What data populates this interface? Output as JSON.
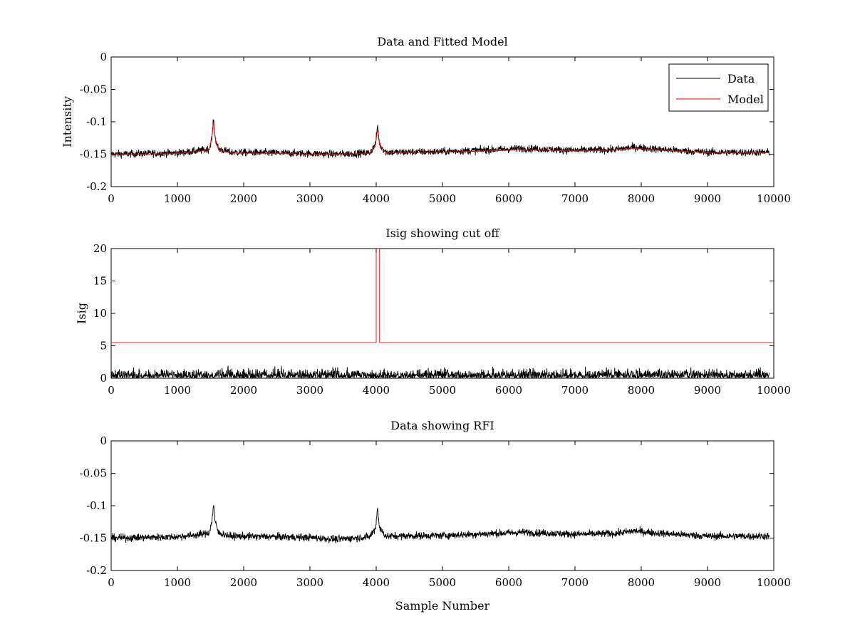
{
  "chart_data": [
    {
      "type": "line",
      "title": "Data and Fitted Model",
      "xlabel": "",
      "ylabel": "Intensity",
      "xlim": [
        0,
        10000
      ],
      "ylim": [
        -0.2,
        0
      ],
      "xticks": [
        0,
        1000,
        2000,
        3000,
        4000,
        5000,
        6000,
        7000,
        8000,
        9000,
        10000
      ],
      "yticks": [
        0,
        -0.05,
        -0.1,
        -0.15,
        -0.2
      ],
      "ytick_labels": [
        "0",
        "-0.05",
        "-0.1",
        "-0.15",
        "-0.2"
      ],
      "legend_position": "top-right",
      "x_range": [
        0,
        9930
      ],
      "series": [
        {
          "name": "Data",
          "color": "#000000",
          "noise": 0.004,
          "baseline": [
            [
              0,
              -0.15
            ],
            [
              1000,
              -0.148
            ],
            [
              1300,
              -0.145
            ],
            [
              1480,
              -0.142
            ],
            [
              1520,
              -0.125
            ],
            [
              1545,
              -0.097
            ],
            [
              1570,
              -0.125
            ],
            [
              1620,
              -0.142
            ],
            [
              1800,
              -0.147
            ],
            [
              2500,
              -0.148
            ],
            [
              3000,
              -0.149
            ],
            [
              3400,
              -0.15
            ],
            [
              3900,
              -0.148
            ],
            [
              3990,
              -0.135
            ],
            [
              4020,
              -0.105
            ],
            [
              4050,
              -0.135
            ],
            [
              4150,
              -0.147
            ],
            [
              5000,
              -0.146
            ],
            [
              6000,
              -0.142
            ],
            [
              6200,
              -0.141
            ],
            [
              7000,
              -0.144
            ],
            [
              7600,
              -0.143
            ],
            [
              7900,
              -0.139
            ],
            [
              8200,
              -0.142
            ],
            [
              9000,
              -0.147
            ],
            [
              9930,
              -0.147
            ]
          ]
        },
        {
          "name": "Model",
          "color": "#ff0000",
          "noise": 0,
          "baseline": [
            [
              0,
              -0.151
            ],
            [
              1000,
              -0.149
            ],
            [
              1300,
              -0.146
            ],
            [
              1480,
              -0.143
            ],
            [
              1520,
              -0.126
            ],
            [
              1545,
              -0.1
            ],
            [
              1570,
              -0.126
            ],
            [
              1620,
              -0.143
            ],
            [
              1800,
              -0.148
            ],
            [
              2500,
              -0.149
            ],
            [
              3000,
              -0.15
            ],
            [
              3400,
              -0.15
            ],
            [
              3900,
              -0.149
            ],
            [
              3990,
              -0.136
            ],
            [
              4020,
              -0.11
            ],
            [
              4050,
              -0.136
            ],
            [
              4150,
              -0.148
            ],
            [
              5000,
              -0.147
            ],
            [
              6000,
              -0.144
            ],
            [
              6200,
              -0.143
            ],
            [
              7000,
              -0.145
            ],
            [
              7600,
              -0.144
            ],
            [
              7900,
              -0.141
            ],
            [
              8200,
              -0.143
            ],
            [
              9000,
              -0.148
            ],
            [
              9930,
              -0.148
            ]
          ]
        }
      ]
    },
    {
      "type": "line",
      "title": "Isig showing cut off",
      "xlabel": "",
      "ylabel": "Isig",
      "xlim": [
        0,
        10000
      ],
      "ylim": [
        0,
        20
      ],
      "xticks": [
        0,
        1000,
        2000,
        3000,
        4000,
        5000,
        6000,
        7000,
        8000,
        9000,
        10000
      ],
      "yticks": [
        0,
        5,
        10,
        15,
        20
      ],
      "ytick_labels": [
        "0",
        "5",
        "10",
        "15",
        "20"
      ],
      "x_range": [
        0,
        9930
      ],
      "series": [
        {
          "name": "",
          "color": "#000000",
          "kind": "abs_noise",
          "scale": 0.9
        },
        {
          "name": "",
          "color": "#ff0000",
          "kind": "step",
          "points": [
            [
              0,
              5.5
            ],
            [
              4000,
              5.5
            ],
            [
              4000,
              20
            ],
            [
              4050,
              20
            ],
            [
              4050,
              5.5
            ],
            [
              10000,
              5.5
            ]
          ]
        }
      ]
    },
    {
      "type": "line",
      "title": "Data showing RFI",
      "xlabel": "Sample Number",
      "ylabel": "",
      "xlim": [
        0,
        10000
      ],
      "ylim": [
        -0.2,
        0
      ],
      "xticks": [
        0,
        1000,
        2000,
        3000,
        4000,
        5000,
        6000,
        7000,
        8000,
        9000,
        10000
      ],
      "yticks": [
        0,
        -0.05,
        -0.1,
        -0.15,
        -0.2
      ],
      "ytick_labels": [
        "0",
        "-0.05",
        "-0.1",
        "-0.15",
        "-0.2"
      ],
      "x_range": [
        0,
        9930
      ],
      "series": [
        {
          "name": "",
          "color": "#000000",
          "noise": 0.004,
          "baseline": [
            [
              0,
              -0.15
            ],
            [
              1000,
              -0.148
            ],
            [
              1300,
              -0.145
            ],
            [
              1480,
              -0.142
            ],
            [
              1520,
              -0.125
            ],
            [
              1545,
              -0.097
            ],
            [
              1570,
              -0.125
            ],
            [
              1620,
              -0.142
            ],
            [
              1800,
              -0.147
            ],
            [
              2500,
              -0.148
            ],
            [
              3000,
              -0.149
            ],
            [
              3400,
              -0.152
            ],
            [
              3900,
              -0.148
            ],
            [
              3990,
              -0.135
            ],
            [
              4020,
              -0.102
            ],
            [
              4050,
              -0.135
            ],
            [
              4150,
              -0.147
            ],
            [
              5000,
              -0.146
            ],
            [
              6000,
              -0.142
            ],
            [
              6200,
              -0.141
            ],
            [
              7000,
              -0.144
            ],
            [
              7600,
              -0.143
            ],
            [
              7900,
              -0.139
            ],
            [
              8200,
              -0.142
            ],
            [
              9000,
              -0.147
            ],
            [
              9930,
              -0.147
            ]
          ]
        }
      ]
    }
  ]
}
